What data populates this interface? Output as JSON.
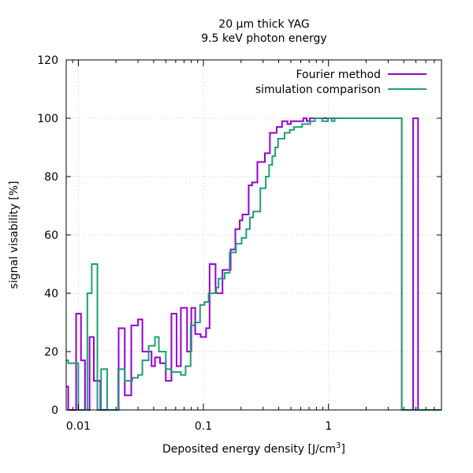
{
  "chart_data": {
    "type": "line",
    "step": true,
    "title": [
      "20 µm thick YAG",
      "9.5 keV photon energy"
    ],
    "xlabel": "Deposited energy density [J/cm",
    "xlabel_sup": "3",
    "xlabel_end": "]",
    "ylabel": "signal visability [%]",
    "x_scale": "log",
    "xlim": [
      0.008,
      8.0
    ],
    "ylim": [
      0,
      120
    ],
    "x_ticks": [
      {
        "value": 0.01,
        "label": "0.01"
      },
      {
        "value": 0.1,
        "label": "0.1"
      },
      {
        "value": 1,
        "label": "1"
      }
    ],
    "y_ticks": [
      0,
      20,
      40,
      60,
      80,
      100,
      120
    ],
    "grid": true,
    "legend_placement": "top-right",
    "series": [
      {
        "name": "Fourier method",
        "color": "#9400d3",
        "points": [
          [
            0.008,
            8
          ],
          [
            0.0083,
            0
          ],
          [
            0.0093,
            0
          ],
          [
            0.0096,
            33
          ],
          [
            0.0103,
            33
          ],
          [
            0.0105,
            17
          ],
          [
            0.0113,
            0
          ],
          [
            0.0123,
            25
          ],
          [
            0.0131,
            25
          ],
          [
            0.0133,
            10
          ],
          [
            0.0147,
            10
          ],
          [
            0.015,
            0
          ],
          [
            0.0205,
            0
          ],
          [
            0.021,
            28
          ],
          [
            0.0225,
            28
          ],
          [
            0.0235,
            5
          ],
          [
            0.026,
            5
          ],
          [
            0.0265,
            29
          ],
          [
            0.0295,
            29
          ],
          [
            0.03,
            31
          ],
          [
            0.032,
            31
          ],
          [
            0.0325,
            20
          ],
          [
            0.0375,
            20
          ],
          [
            0.0385,
            15
          ],
          [
            0.04,
            15
          ],
          [
            0.041,
            18
          ],
          [
            0.044,
            18
          ],
          [
            0.045,
            16
          ],
          [
            0.048,
            16
          ],
          [
            0.05,
            10
          ],
          [
            0.055,
            10
          ],
          [
            0.0555,
            33
          ],
          [
            0.06,
            33
          ],
          [
            0.061,
            15
          ],
          [
            0.065,
            15
          ],
          [
            0.066,
            35
          ],
          [
            0.073,
            35
          ],
          [
            0.074,
            20
          ],
          [
            0.079,
            20
          ],
          [
            0.08,
            35
          ],
          [
            0.085,
            35
          ],
          [
            0.086,
            26
          ],
          [
            0.094,
            26
          ],
          [
            0.095,
            25
          ],
          [
            0.1,
            25
          ],
          [
            0.105,
            28
          ],
          [
            0.11,
            28
          ],
          [
            0.112,
            50
          ],
          [
            0.122,
            50
          ],
          [
            0.125,
            40
          ],
          [
            0.14,
            40
          ],
          [
            0.142,
            48
          ],
          [
            0.16,
            48
          ],
          [
            0.165,
            55
          ],
          [
            0.175,
            55
          ],
          [
            0.18,
            62
          ],
          [
            0.19,
            62
          ],
          [
            0.195,
            65
          ],
          [
            0.2,
            65
          ],
          [
            0.205,
            67
          ],
          [
            0.225,
            67
          ],
          [
            0.23,
            77
          ],
          [
            0.24,
            77
          ],
          [
            0.245,
            78
          ],
          [
            0.265,
            78
          ],
          [
            0.27,
            85
          ],
          [
            0.305,
            85
          ],
          [
            0.31,
            88
          ],
          [
            0.335,
            88
          ],
          [
            0.34,
            95
          ],
          [
            0.38,
            95
          ],
          [
            0.385,
            97
          ],
          [
            0.42,
            97
          ],
          [
            0.425,
            99
          ],
          [
            0.46,
            99
          ],
          [
            0.47,
            98
          ],
          [
            0.49,
            98
          ],
          [
            0.5,
            99
          ],
          [
            0.62,
            99
          ],
          [
            0.63,
            100
          ],
          [
            0.66,
            100
          ],
          [
            0.67,
            99
          ],
          [
            0.7,
            99
          ],
          [
            0.71,
            100
          ],
          [
            3.8,
            100
          ],
          [
            3.85,
            0
          ],
          [
            4.7,
            0
          ],
          [
            4.75,
            100
          ],
          [
            5.1,
            100
          ],
          [
            5.2,
            0
          ],
          [
            8.0,
            0
          ]
        ]
      },
      {
        "name": "simulation comparison",
        "color": "#1f9e77",
        "points": [
          [
            0.008,
            17
          ],
          [
            0.0083,
            16
          ],
          [
            0.0096,
            16
          ],
          [
            0.01,
            0
          ],
          [
            0.0115,
            0
          ],
          [
            0.0118,
            40
          ],
          [
            0.0125,
            40
          ],
          [
            0.0128,
            50
          ],
          [
            0.0139,
            50
          ],
          [
            0.0142,
            0
          ],
          [
            0.015,
            0
          ],
          [
            0.0152,
            14
          ],
          [
            0.0167,
            14
          ],
          [
            0.017,
            0
          ],
          [
            0.0205,
            0
          ],
          [
            0.0208,
            14
          ],
          [
            0.0225,
            14
          ],
          [
            0.0235,
            10
          ],
          [
            0.0265,
            10
          ],
          [
            0.027,
            11
          ],
          [
            0.0295,
            11
          ],
          [
            0.03,
            12
          ],
          [
            0.032,
            12
          ],
          [
            0.0325,
            17
          ],
          [
            0.036,
            17
          ],
          [
            0.0365,
            22
          ],
          [
            0.04,
            22
          ],
          [
            0.041,
            25
          ],
          [
            0.043,
            25
          ],
          [
            0.044,
            20
          ],
          [
            0.049,
            20
          ],
          [
            0.05,
            14
          ],
          [
            0.054,
            14
          ],
          [
            0.055,
            13
          ],
          [
            0.065,
            13
          ],
          [
            0.066,
            12
          ],
          [
            0.07,
            12
          ],
          [
            0.072,
            15
          ],
          [
            0.078,
            15
          ],
          [
            0.079,
            29
          ],
          [
            0.083,
            29
          ],
          [
            0.085,
            30
          ],
          [
            0.092,
            30
          ],
          [
            0.094,
            36
          ],
          [
            0.1,
            36
          ],
          [
            0.102,
            37
          ],
          [
            0.109,
            37
          ],
          [
            0.11,
            40
          ],
          [
            0.125,
            40
          ],
          [
            0.127,
            42
          ],
          [
            0.13,
            42
          ],
          [
            0.132,
            45
          ],
          [
            0.145,
            45
          ],
          [
            0.148,
            47
          ],
          [
            0.16,
            47
          ],
          [
            0.162,
            54
          ],
          [
            0.18,
            54
          ],
          [
            0.182,
            57
          ],
          [
            0.2,
            57
          ],
          [
            0.202,
            59
          ],
          [
            0.215,
            59
          ],
          [
            0.22,
            62
          ],
          [
            0.23,
            62
          ],
          [
            0.235,
            66
          ],
          [
            0.248,
            66
          ],
          [
            0.25,
            68
          ],
          [
            0.28,
            68
          ],
          [
            0.285,
            76
          ],
          [
            0.31,
            76
          ],
          [
            0.315,
            80
          ],
          [
            0.33,
            80
          ],
          [
            0.335,
            84
          ],
          [
            0.35,
            84
          ],
          [
            0.355,
            87
          ],
          [
            0.37,
            87
          ],
          [
            0.375,
            90
          ],
          [
            0.39,
            90
          ],
          [
            0.395,
            93
          ],
          [
            0.44,
            93
          ],
          [
            0.445,
            95
          ],
          [
            0.485,
            95
          ],
          [
            0.49,
            96
          ],
          [
            0.52,
            96
          ],
          [
            0.53,
            97
          ],
          [
            0.61,
            97
          ],
          [
            0.615,
            98
          ],
          [
            0.71,
            98
          ],
          [
            0.715,
            99
          ],
          [
            0.77,
            99
          ],
          [
            0.78,
            100
          ],
          [
            0.88,
            100
          ],
          [
            0.89,
            99
          ],
          [
            0.98,
            99
          ],
          [
            0.99,
            100
          ],
          [
            1.05,
            100
          ],
          [
            1.06,
            99
          ],
          [
            1.1,
            99
          ],
          [
            1.12,
            100
          ],
          [
            3.8,
            100
          ],
          [
            3.85,
            0
          ],
          [
            8.0,
            0
          ]
        ]
      }
    ]
  }
}
